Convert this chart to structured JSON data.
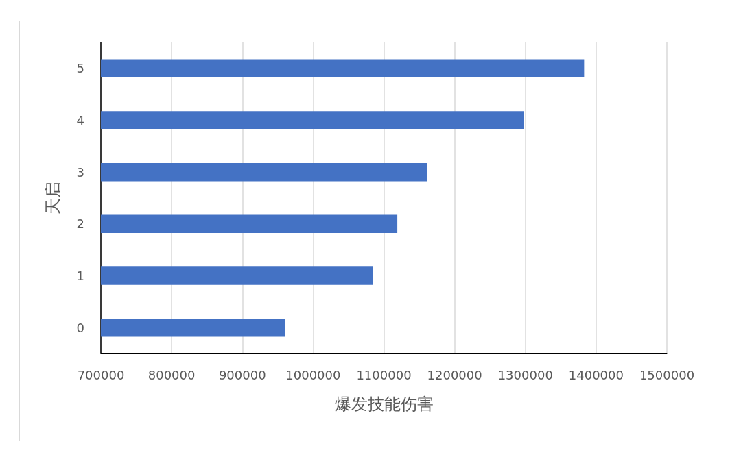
{
  "chart_data": {
    "type": "bar",
    "orientation": "horizontal",
    "xlabel": "爆发技能伤害",
    "ylabel": "天启",
    "categories": [
      "5",
      "4",
      "3",
      "2",
      "1",
      "0"
    ],
    "values": [
      1383000,
      1298000,
      1161000,
      1119000,
      1084000,
      960000
    ],
    "color": "#4472c4",
    "xlim": [
      700000,
      1500000
    ],
    "xticks": [
      700000,
      800000,
      900000,
      1000000,
      1100000,
      1200000,
      1300000,
      1400000,
      1500000
    ],
    "grid": "x"
  }
}
